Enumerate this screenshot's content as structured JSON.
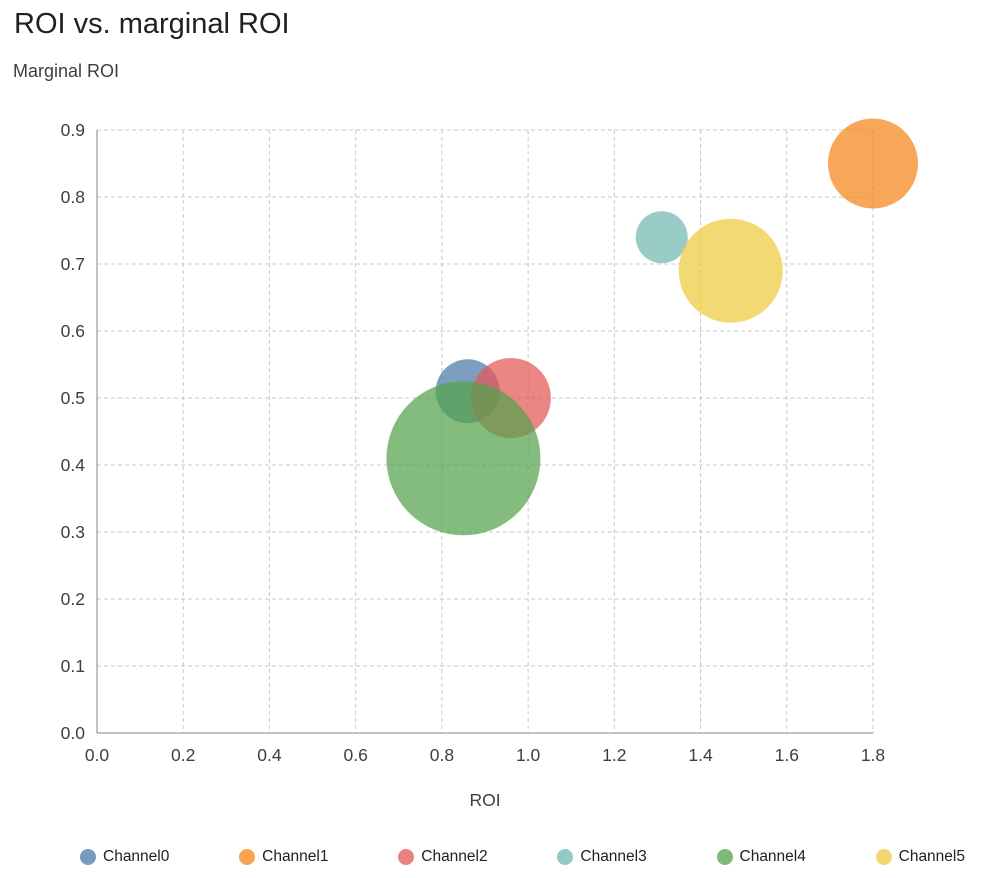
{
  "chart_data": {
    "type": "scatter",
    "subtype": "bubble",
    "title": "ROI vs. marginal ROI",
    "xlabel": "ROI",
    "ylabel": "Marginal ROI",
    "xlim": [
      0.0,
      1.8
    ],
    "ylim": [
      0.0,
      0.9
    ],
    "xticks": [
      0.0,
      0.2,
      0.4,
      0.6,
      0.8,
      1.0,
      1.2,
      1.4,
      1.6,
      1.8
    ],
    "yticks": [
      0.0,
      0.1,
      0.2,
      0.3,
      0.4,
      0.5,
      0.6,
      0.7,
      0.8,
      0.9
    ],
    "tick_decimals": 1,
    "grid": true,
    "grid_style": "dashed",
    "legend_position": "bottom",
    "bubble_opacity": 0.72,
    "series": [
      {
        "name": "Channel0",
        "x": 0.86,
        "y": 0.51,
        "radius_px": 32,
        "color": "#4c78a8"
      },
      {
        "name": "Channel1",
        "x": 1.8,
        "y": 0.85,
        "radius_px": 45,
        "color": "#f58518"
      },
      {
        "name": "Channel2",
        "x": 0.96,
        "y": 0.5,
        "radius_px": 40,
        "color": "#e45756"
      },
      {
        "name": "Channel3",
        "x": 1.31,
        "y": 0.74,
        "radius_px": 26,
        "color": "#72b7b2"
      },
      {
        "name": "Channel4",
        "x": 0.85,
        "y": 0.41,
        "radius_px": 77,
        "color": "#54a24b"
      },
      {
        "name": "Channel5",
        "x": 1.47,
        "y": 0.69,
        "radius_px": 52,
        "color": "#eeca3b"
      }
    ],
    "style": {
      "title_color": "#202124",
      "axis_title_color": "#3c4043",
      "tick_label_color": "#3c4043",
      "grid_color": "#c8c8c8",
      "axis_line_color": "#80868b",
      "background": "#ffffff",
      "legend_label_color": "#202124"
    }
  }
}
